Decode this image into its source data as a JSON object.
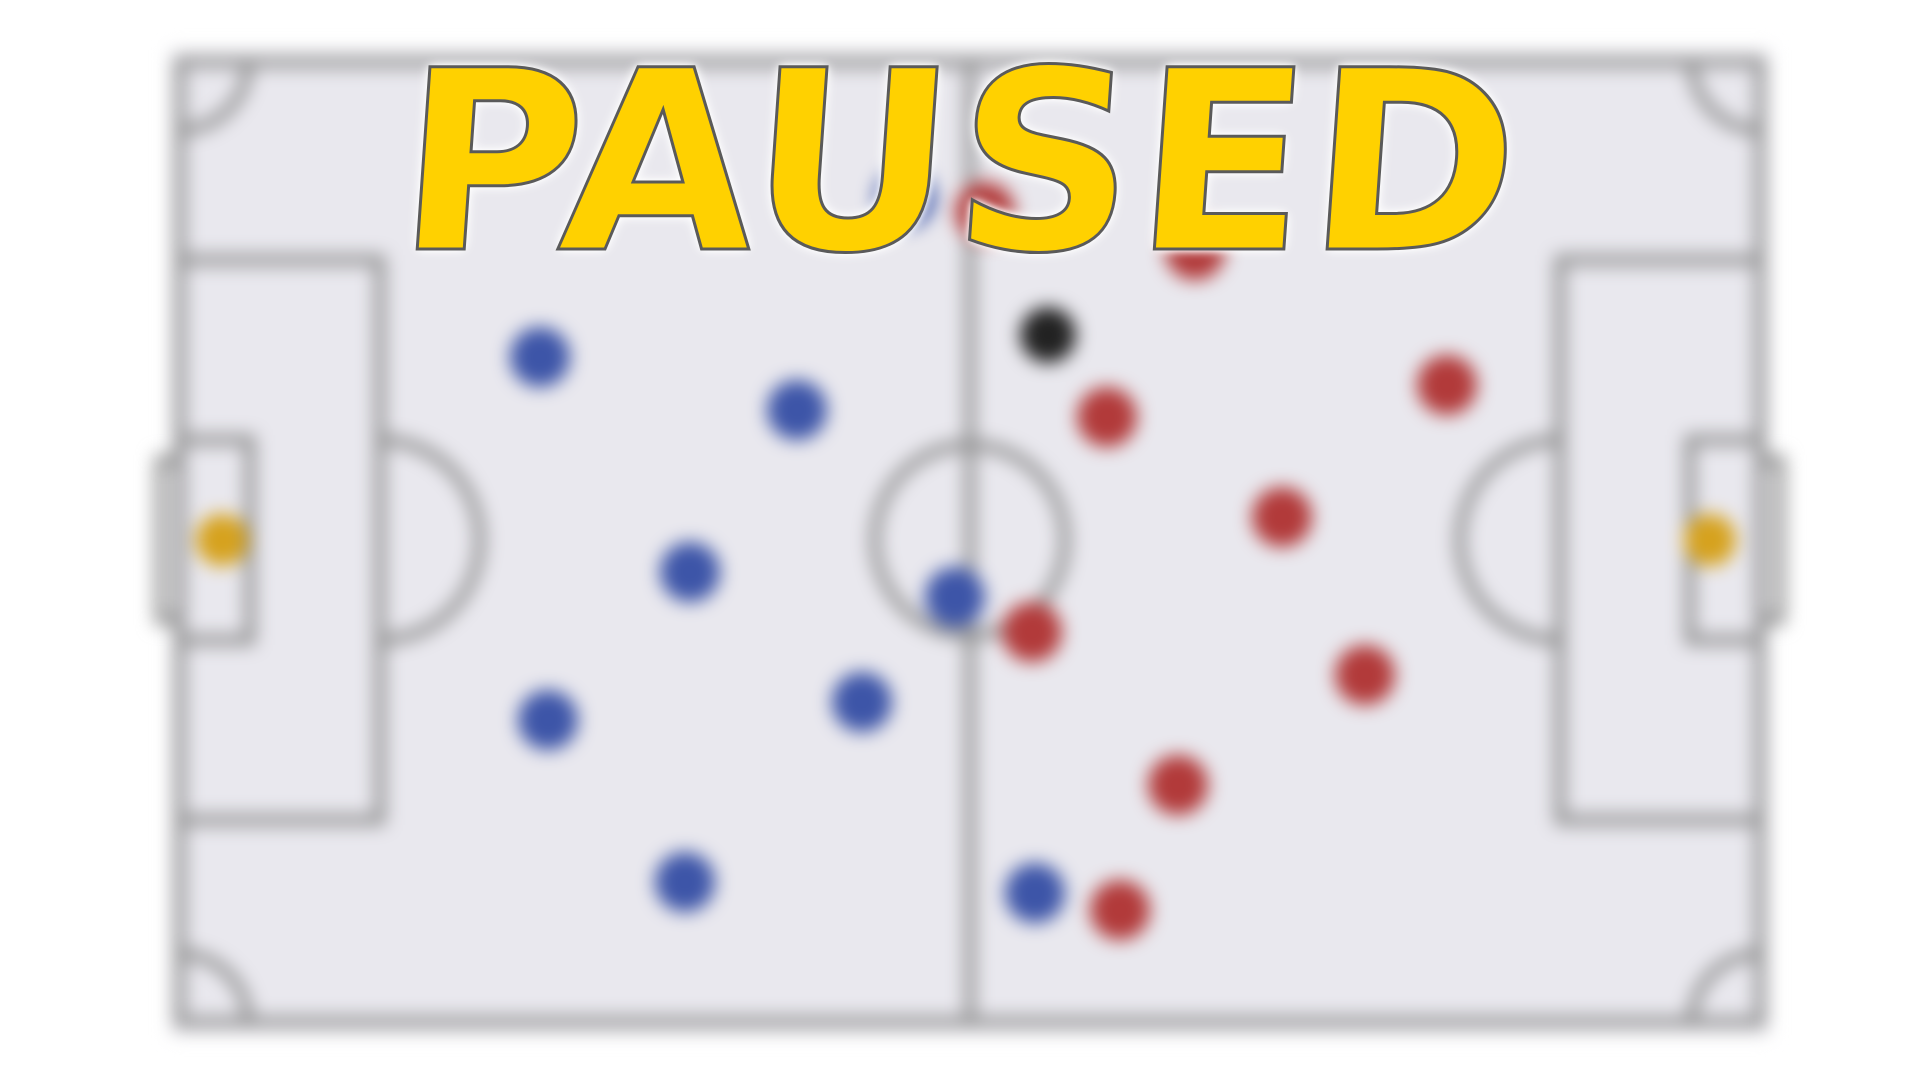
{
  "overlay": {
    "title": "PAUSED",
    "title_color": "#ffd100",
    "title_outline": "#5a5a5a"
  },
  "pitch": {
    "surface_color": "#e9e8ee",
    "line_color": "#8c8c8c",
    "blurred": true
  },
  "teams": {
    "blue": {
      "color": "#3d55a8",
      "players": 11
    },
    "red": {
      "color": "#b23a3a",
      "players": 11
    },
    "keeper_color": "#d6a21e"
  },
  "ball": {
    "color": "#222222"
  }
}
